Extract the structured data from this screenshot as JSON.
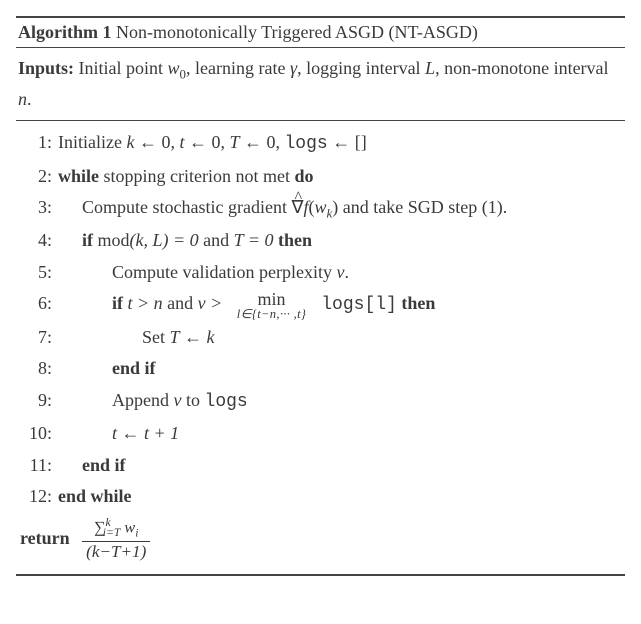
{
  "colors": {
    "text": "#3a3a3a",
    "rule": "#444444",
    "background": "#ffffff"
  },
  "font": {
    "family": "Times New Roman",
    "base_size_pt": 13
  },
  "title": {
    "label": "Algorithm 1",
    "name": "Non-monotonically Triggered ASGD (NT-ASGD)"
  },
  "inputs": {
    "label": "Inputs:",
    "text_a": " Initial point ",
    "w0": "w",
    "w0_sub": "0",
    "text_b": ", learning rate ",
    "gamma": "γ",
    "text_c": ", logging interval ",
    "L": "L",
    "text_d": ", non-monotone interval ",
    "n": "n",
    "period": "."
  },
  "lines": {
    "l1": {
      "no": "1:",
      "a": "Initialize ",
      "k": "k",
      "arrow1": " ← 0, ",
      "t": "t",
      "arrow2": " ← 0, ",
      "T": "T",
      "arrow3": " ← 0, ",
      "logs": "logs",
      "arrow4": " ← []"
    },
    "l2": {
      "no": "2:",
      "while": "while",
      "cond": " stopping criterion not met ",
      "do": "do"
    },
    "l3": {
      "no": "3:",
      "a": "Compute stochastic gradient ",
      "grad": "∇",
      "f": "f",
      "open": "(",
      "w": "w",
      "k": "k",
      "close": ")",
      "b": " and take SGD step (1)."
    },
    "l4": {
      "no": "4:",
      "if": "if",
      "sp1": "  ",
      "mod": "mod",
      "args": "(k, L) = 0",
      "and": " and ",
      "Teq": "T = 0 ",
      "then": "then"
    },
    "l5": {
      "no": "5:",
      "a": "Compute validation perplexity ",
      "v": "v",
      "dot": "."
    },
    "l6": {
      "no": "6:",
      "if": "if",
      "sp": " ",
      "cond_a": "t > n",
      "and": " and ",
      "cond_b": "v > ",
      "min": "min",
      "min_sub": "l∈{t−n,··· ,t}",
      "logs": "logs",
      "idx": "[l]",
      "sp2": " ",
      "then": "then"
    },
    "l7": {
      "no": "7:",
      "a": "Set ",
      "T": "T",
      "arrow": " ← ",
      "k": "k"
    },
    "l8": {
      "no": "8:",
      "endif": "end if"
    },
    "l9": {
      "no": "9:",
      "a": "Append ",
      "v": "v",
      "b": " to ",
      "logs": "logs"
    },
    "l10": {
      "no": "10:",
      "t": "t",
      "arrow": " ← ",
      "expr": "t + 1"
    },
    "l11": {
      "no": "11:",
      "endif": "end if"
    },
    "l12": {
      "no": "12:",
      "endwhile": "end while"
    }
  },
  "return": {
    "label": "return",
    "num_sigma": "∑",
    "num_sup": "k",
    "num_sub": "i=T",
    "num_w": " w",
    "num_i": "i",
    "den": "(k−T+1)"
  }
}
